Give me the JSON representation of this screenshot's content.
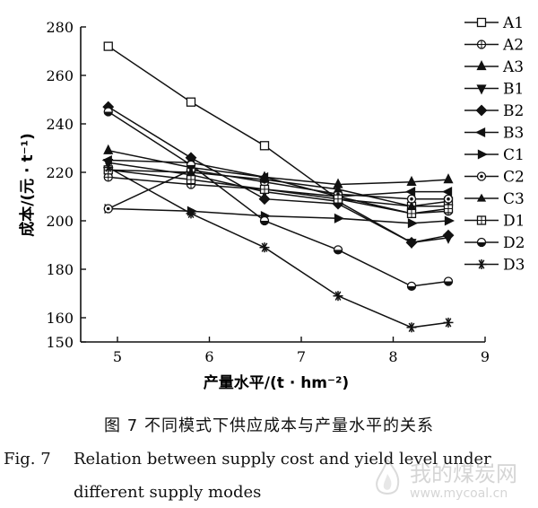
{
  "chart_data": {
    "type": "line",
    "xlabel": "产量水平/(t · hm⁻²)",
    "ylabel": "成本/(元 · t⁻¹)",
    "xlim": [
      4.6,
      9
    ],
    "ylim": [
      150,
      280
    ],
    "xticks": [
      5,
      6,
      7,
      8,
      9
    ],
    "yticks": [
      150,
      160,
      180,
      200,
      220,
      240,
      260,
      280
    ],
    "legend_position": "top-right",
    "x": [
      4.9,
      5.8,
      6.6,
      7.4,
      8.2,
      8.6
    ],
    "series": [
      {
        "name": "A1",
        "marker": "square",
        "values": [
          272,
          249,
          231,
          209,
          206,
          208
        ]
      },
      {
        "name": "A2",
        "marker": "circle-plus",
        "values": [
          218,
          215,
          213,
          210,
          203,
          204
        ]
      },
      {
        "name": "A3",
        "marker": "triangle-up",
        "values": [
          229,
          222,
          218,
          215,
          216,
          217
        ]
      },
      {
        "name": "B1",
        "marker": "triangle-down",
        "values": [
          224,
          219,
          212,
          208,
          191,
          193
        ]
      },
      {
        "name": "B2",
        "marker": "diamond",
        "values": [
          247,
          226,
          209,
          207,
          191,
          194
        ]
      },
      {
        "name": "B3",
        "marker": "triangle-left",
        "values": [
          225,
          224,
          218,
          210,
          212,
          212
        ]
      },
      {
        "name": "C1",
        "marker": "triangle-right",
        "values": [
          205,
          204,
          202,
          201,
          199,
          200
        ]
      },
      {
        "name": "C2",
        "marker": "circle-ring",
        "values": [
          205,
          221,
          216,
          211,
          209,
          209
        ]
      },
      {
        "name": "C3",
        "marker": "star-small",
        "values": [
          221,
          220,
          217,
          213,
          206,
          206
        ]
      },
      {
        "name": "D1",
        "marker": "square-cross",
        "values": [
          221,
          217,
          213,
          209,
          203,
          205
        ]
      },
      {
        "name": "D2",
        "marker": "circle-half",
        "values": [
          245,
          223,
          200,
          188,
          173,
          175
        ]
      },
      {
        "name": "D3",
        "marker": "asterisk",
        "values": [
          222,
          203,
          189,
          169,
          156,
          158
        ]
      }
    ]
  },
  "caption": {
    "cn": "图 7    不同模式下供应成本与产量水平的关系",
    "en_fig": "Fig. 7",
    "en_line1": "Relation between supply cost and yield level under",
    "en_line2": "different supply modes"
  },
  "watermark": {
    "text": "我的煤炭网",
    "url": "www.mycoal.cn"
  }
}
